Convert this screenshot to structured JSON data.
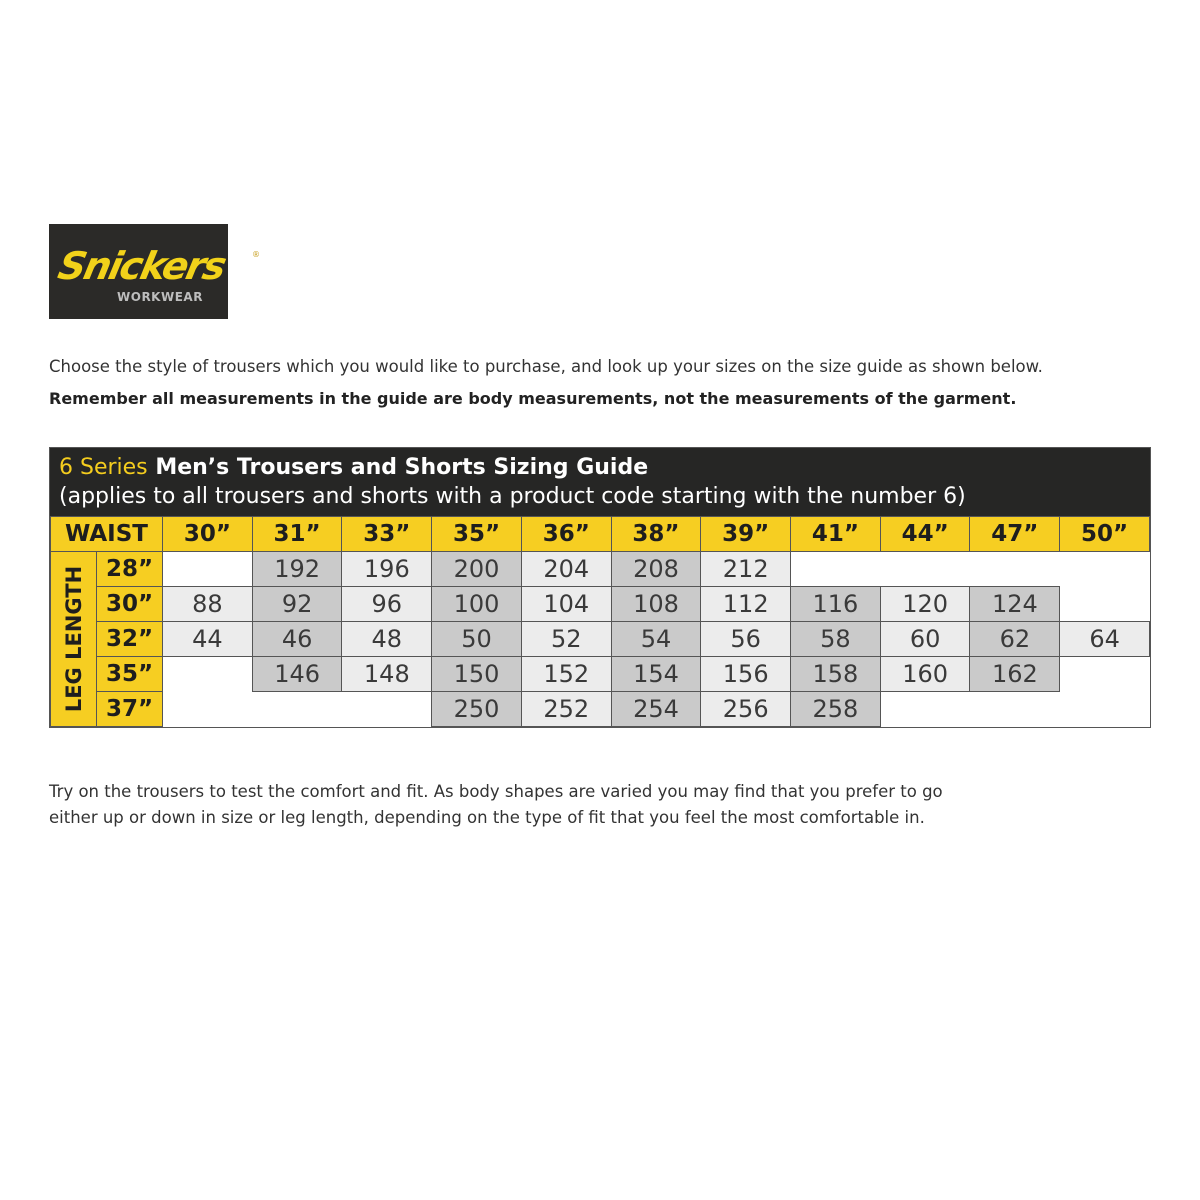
{
  "logo": {
    "brand": "Snickers",
    "sub": "WORKWEAR",
    "reg": "®"
  },
  "intro": {
    "line1": "Choose the style of trousers which you would like to purchase, and look up your sizes on the size guide as shown below.",
    "line2": "Remember all measurements in the guide are body measurements, not the measurements of the garment."
  },
  "chart": {
    "series_label": "6 Series",
    "title": "Men’s Trousers and Shorts Sizing Guide",
    "subtitle": "(applies to all trousers and shorts with a product code starting with the number 6)",
    "waist_label": "WAIST",
    "leg_label": "LEG LENGTH",
    "waists": [
      "30”",
      "31”",
      "33”",
      "35”",
      "36”",
      "38”",
      "39”",
      "41”",
      "44”",
      "47”",
      "50”"
    ],
    "rows": [
      {
        "leg": "28”",
        "sizes": [
          null,
          "192",
          "196",
          "200",
          "204",
          "208",
          "212",
          null,
          null,
          null,
          null
        ]
      },
      {
        "leg": "30”",
        "sizes": [
          "88",
          "92",
          "96",
          "100",
          "104",
          "108",
          "112",
          "116",
          "120",
          "124",
          null
        ]
      },
      {
        "leg": "32”",
        "sizes": [
          "44",
          "46",
          "48",
          "50",
          "52",
          "54",
          "56",
          "58",
          "60",
          "62",
          "64"
        ]
      },
      {
        "leg": "35”",
        "sizes": [
          null,
          "146",
          "148",
          "150",
          "152",
          "154",
          "156",
          "158",
          "160",
          "162",
          null
        ]
      },
      {
        "leg": "37”",
        "sizes": [
          null,
          null,
          null,
          "250",
          "252",
          "254",
          "256",
          "258",
          null,
          null,
          null
        ]
      }
    ],
    "colors": {
      "header_bg": "#262625",
      "accent_yellow": "#f6ce22",
      "cell_dark": "#cacaca",
      "cell_light": "#ececec"
    }
  },
  "outro": {
    "line1": "Try on the trousers to test the comfort and fit. As body shapes are varied you may find that you prefer to go",
    "line2": "either up or down in size or leg length, depending on the type of fit that you feel the most comfortable in."
  }
}
